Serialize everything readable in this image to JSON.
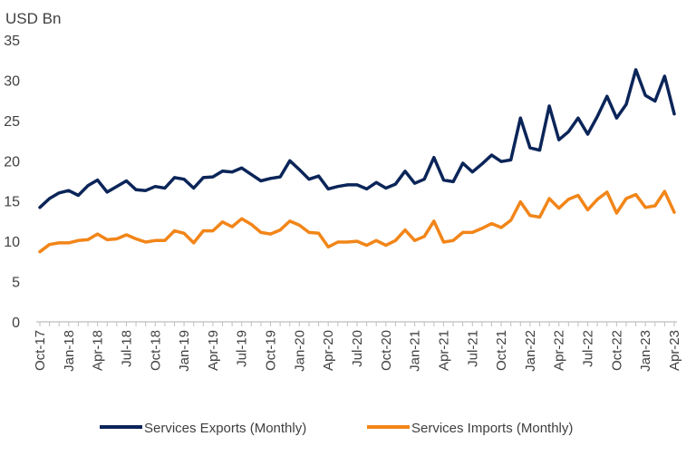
{
  "chart_data": {
    "type": "line",
    "title": "",
    "ylabel": "USD Bn",
    "xlabel": "",
    "ylim": [
      0,
      35
    ],
    "yticks": [
      0,
      5,
      10,
      15,
      20,
      25,
      30,
      35
    ],
    "grid": false,
    "legend_position": "bottom",
    "x": [
      "Oct-17",
      "Nov-17",
      "Dec-17",
      "Jan-18",
      "Feb-18",
      "Mar-18",
      "Apr-18",
      "May-18",
      "Jun-18",
      "Jul-18",
      "Aug-18",
      "Sep-18",
      "Oct-18",
      "Nov-18",
      "Dec-18",
      "Jan-19",
      "Feb-19",
      "Mar-19",
      "Apr-19",
      "May-19",
      "Jun-19",
      "Jul-19",
      "Aug-19",
      "Sep-19",
      "Oct-19",
      "Nov-19",
      "Dec-19",
      "Jan-20",
      "Feb-20",
      "Mar-20",
      "Apr-20",
      "May-20",
      "Jun-20",
      "Jul-20",
      "Aug-20",
      "Sep-20",
      "Oct-20",
      "Nov-20",
      "Dec-20",
      "Jan-21",
      "Feb-21",
      "Mar-21",
      "Apr-21",
      "May-21",
      "Jun-21",
      "Jul-21",
      "Aug-21",
      "Sep-21",
      "Oct-21",
      "Nov-21",
      "Dec-21",
      "Jan-22",
      "Feb-22",
      "Mar-22",
      "Apr-22",
      "May-22",
      "Jun-22",
      "Jul-22",
      "Aug-22",
      "Sep-22",
      "Oct-22",
      "Nov-22",
      "Dec-22",
      "Jan-23",
      "Feb-23",
      "Mar-23",
      "Apr-23"
    ],
    "tick_labels": [
      "Oct-17",
      "Jan-18",
      "Apr-18",
      "Jul-18",
      "Oct-18",
      "Jan-19",
      "Apr-19",
      "Jul-19",
      "Oct-19",
      "Jan-20",
      "Apr-20",
      "Jul-20",
      "Oct-20",
      "Jan-21",
      "Apr-21",
      "Jul-21",
      "Oct-21",
      "Jan-22",
      "Apr-22",
      "Jul-22",
      "Oct-22",
      "Jan-23",
      "Apr-23"
    ],
    "series": [
      {
        "name": "Services Exports (Monthly)",
        "color": "#0b2559",
        "values": [
          14.2,
          15.3,
          16.0,
          16.3,
          15.7,
          16.9,
          17.6,
          16.1,
          16.8,
          17.5,
          16.4,
          16.3,
          16.8,
          16.6,
          17.9,
          17.7,
          16.6,
          17.9,
          18.0,
          18.7,
          18.6,
          19.1,
          18.3,
          17.5,
          17.8,
          18.0,
          20.0,
          18.9,
          17.7,
          18.1,
          16.5,
          16.8,
          17.0,
          17.0,
          16.5,
          17.3,
          16.6,
          17.1,
          18.7,
          17.2,
          17.7,
          20.4,
          17.6,
          17.4,
          19.7,
          18.6,
          19.6,
          20.7,
          19.9,
          20.1,
          25.3,
          21.6,
          21.3,
          26.8,
          22.6,
          23.6,
          25.3,
          23.3,
          25.5,
          28.0,
          25.3,
          27.0,
          31.3,
          28.1,
          27.4,
          30.5,
          25.8
        ]
      },
      {
        "name": "Services Imports (Monthly)",
        "color": "#f28518",
        "values": [
          8.7,
          9.6,
          9.8,
          9.8,
          10.1,
          10.2,
          10.9,
          10.2,
          10.3,
          10.8,
          10.3,
          9.9,
          10.1,
          10.1,
          11.3,
          11.0,
          9.8,
          11.3,
          11.3,
          12.4,
          11.8,
          12.8,
          12.1,
          11.1,
          10.9,
          11.4,
          12.5,
          12.0,
          11.1,
          11.0,
          9.3,
          9.9,
          9.9,
          10.0,
          9.5,
          10.1,
          9.5,
          10.1,
          11.4,
          10.1,
          10.6,
          12.5,
          9.9,
          10.1,
          11.1,
          11.1,
          11.6,
          12.2,
          11.7,
          12.6,
          14.9,
          13.2,
          13.0,
          15.3,
          14.1,
          15.2,
          15.7,
          13.9,
          15.2,
          16.1,
          13.5,
          15.3,
          15.8,
          14.2,
          14.4,
          16.2,
          13.6
        ]
      }
    ]
  }
}
